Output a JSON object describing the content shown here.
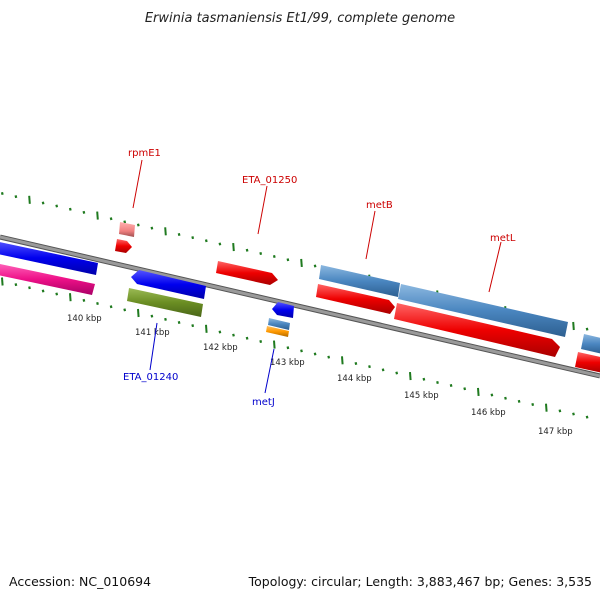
{
  "title": "Erwinia tasmaniensis Et1/99, complete genome",
  "footer": {
    "accession": "Accession: NC_010694",
    "summary": "Topology: circular; Length: 3,883,467 bp; Genes: 3,535"
  },
  "colors": {
    "backbone": "#808080",
    "tick_green": "#1f7a1f",
    "label_red": "#cc0000",
    "label_blue": "#0000cc",
    "gene_blue": "#0000ee",
    "gene_pink": "#ee1188",
    "gene_red": "#ee0000",
    "gene_olive": "#6b8e23",
    "gene_steel": "#4a86c0",
    "gene_salmon": "#f08080",
    "gene_orange": "#ff9900"
  },
  "ticks": {
    "major_labels": [
      "140 kbp",
      "141 kbp",
      "142 kbp",
      "143 kbp",
      "144 kbp",
      "145 kbp",
      "146 kbp",
      "147 kbp"
    ]
  },
  "labels": {
    "rpmE1": "rpmE1",
    "ETA_01250": "ETA_01250",
    "metB": "metB",
    "metL": "metL",
    "ETA_01240": "ETA_01240",
    "metJ": "metJ"
  }
}
